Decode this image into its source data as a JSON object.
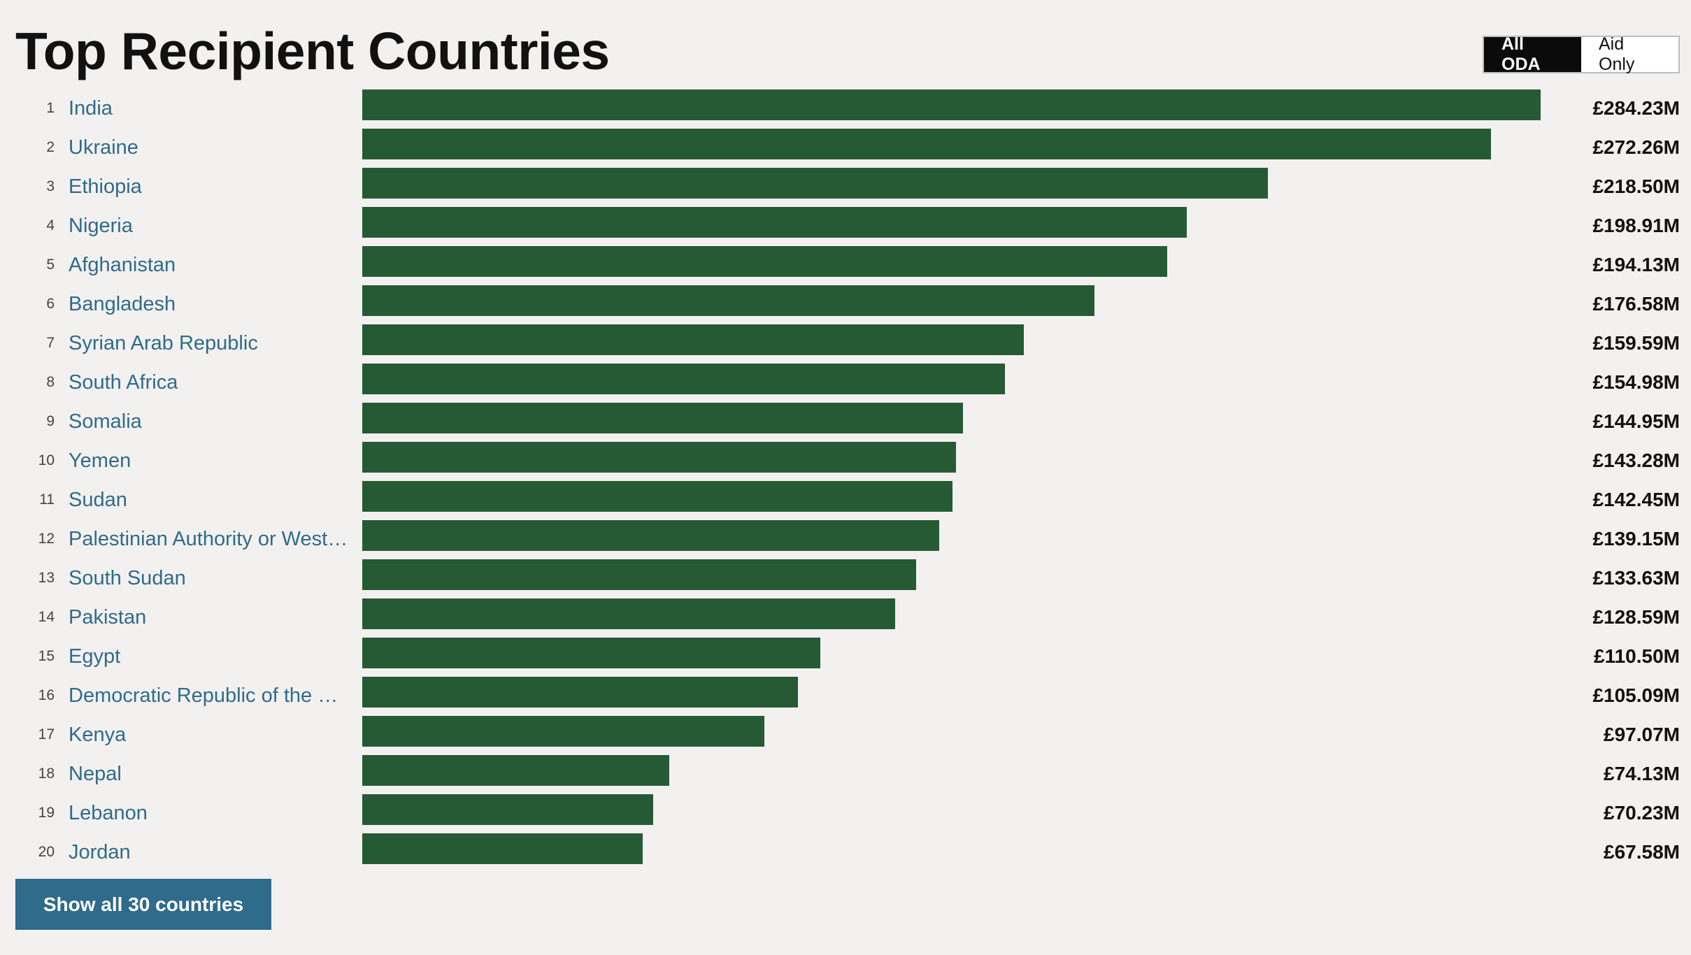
{
  "header": {
    "title": "Top Recipient Countries",
    "toggle": {
      "options": [
        "All ODA",
        "Aid Only"
      ],
      "selected": "All ODA"
    }
  },
  "chart_data": {
    "type": "bar",
    "orientation": "horizontal",
    "title": "Top Recipient Countries",
    "bar_color": "#265a35",
    "ranks": [
      "1",
      "2",
      "3",
      "4",
      "5",
      "6",
      "7",
      "8",
      "9",
      "10",
      "11",
      "12",
      "13",
      "14",
      "15",
      "16",
      "17",
      "18",
      "19",
      "20"
    ],
    "categories": [
      "India",
      "Ukraine",
      "Ethiopia",
      "Nigeria",
      "Afghanistan",
      "Bangladesh",
      "Syrian Arab Republic",
      "South Africa",
      "Somalia",
      "Yemen",
      "Sudan",
      "Palestinian Authority or West …",
      "South Sudan",
      "Pakistan",
      "Egypt",
      "Democratic Republic of the C…",
      "Kenya",
      "Nepal",
      "Lebanon",
      "Jordan"
    ],
    "values": [
      284.23,
      272.26,
      218.5,
      198.91,
      194.13,
      176.58,
      159.59,
      154.98,
      144.95,
      143.28,
      142.45,
      139.15,
      133.63,
      128.59,
      110.5,
      105.09,
      97.07,
      74.13,
      70.23,
      67.58
    ],
    "value_labels": [
      "£284.23M",
      "£272.26M",
      "£218.50M",
      "£198.91M",
      "£194.13M",
      "£176.58M",
      "£159.59M",
      "£154.98M",
      "£144.95M",
      "£143.28M",
      "£142.45M",
      "£139.15M",
      "£133.63M",
      "£128.59M",
      "£110.50M",
      "£105.09M",
      "£97.07M",
      "£74.13M",
      "£70.23M",
      "£67.58M"
    ],
    "unit": "£M"
  },
  "footer": {
    "show_all_label": "Show all 30 countries"
  },
  "colors": {
    "link": "#2f6b8a",
    "bar": "#265a35",
    "background": "#f3f1ef"
  }
}
